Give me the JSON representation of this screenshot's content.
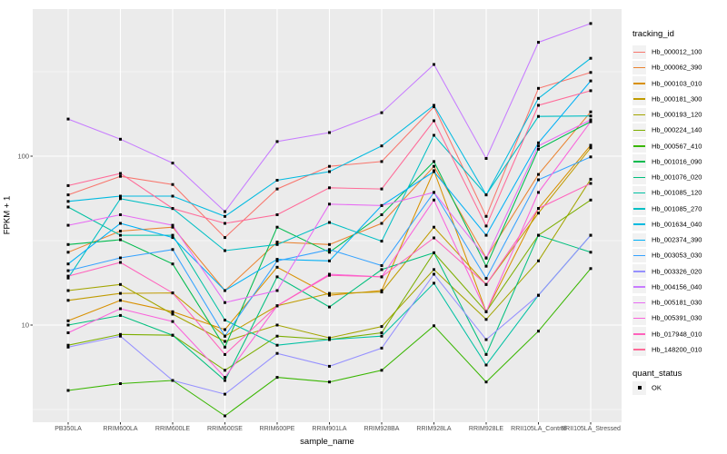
{
  "chart_data": {
    "type": "line",
    "title": "",
    "xlabel": "sample_name",
    "ylabel": "FPKM + 1",
    "y_scale": "log10",
    "ylim": [
      2.6,
      750
    ],
    "grid": true,
    "legend_position": "right",
    "y_ticks": [
      {
        "label": "100",
        "value": 100
      },
      {
        "label": "10",
        "value": 10
      }
    ],
    "y_minor_breaks": [
      316.23,
      31.62,
      3.162
    ],
    "categories": [
      "PB350LA",
      "RRIM600LA",
      "RRIM600LE",
      "RRIM600SE",
      "RRIM600PE",
      "RRIM901LA",
      "RRIM928BA",
      "RRIM928LA",
      "RRIM928LE",
      "RRII105LA_Control",
      "RRII105LA_Stressed"
    ],
    "series": [
      {
        "name": "Hb_000012_100",
        "color": "#F8766D",
        "values": [
          59,
          76,
          68,
          33,
          64,
          87,
          93,
          196,
          44,
          252,
          313
        ]
      },
      {
        "name": "Hb_000062_390",
        "color": "#EA8331",
        "values": [
          27,
          36,
          38,
          16,
          31,
          30,
          40,
          87,
          25,
          78,
          183
        ]
      },
      {
        "name": "Hb_000103_010",
        "color": "#D89000",
        "values": [
          10.6,
          14,
          12,
          9.4,
          22,
          15,
          16,
          82,
          12,
          49,
          116
        ]
      },
      {
        "name": "Hb_000181_300",
        "color": "#C09B00",
        "values": [
          14,
          15.4,
          15.5,
          8.6,
          13,
          15.4,
          15.7,
          38,
          17.4,
          46,
          112
        ]
      },
      {
        "name": "Hb_000193_120",
        "color": "#A3A500",
        "values": [
          16,
          17.4,
          11.6,
          8,
          10,
          8.4,
          9.8,
          21.3,
          10.8,
          24,
          73
        ]
      },
      {
        "name": "Hb_000224_140",
        "color": "#7CAE00",
        "values": [
          7.6,
          8.8,
          8.7,
          5.4,
          8.6,
          8.2,
          9,
          26.8,
          12,
          34,
          55
        ]
      },
      {
        "name": "Hb_000567_410",
        "color": "#39B600",
        "values": [
          4.1,
          4.5,
          4.7,
          2.9,
          4.9,
          4.6,
          5.4,
          9.9,
          4.6,
          9.2,
          21.6
        ]
      },
      {
        "name": "Hb_001016_090",
        "color": "#00BB4E",
        "values": [
          30,
          32,
          23,
          7.4,
          38,
          27,
          45,
          93,
          22.3,
          110,
          160
        ]
      },
      {
        "name": "Hb_001076_020",
        "color": "#00BF7D",
        "values": [
          10,
          11.4,
          8.7,
          4.7,
          19.3,
          12.8,
          21.3,
          26.8,
          6.7,
          34,
          27
        ]
      },
      {
        "name": "Hb_001085_120",
        "color": "#00C1A3",
        "values": [
          50,
          34,
          34,
          10.7,
          7.6,
          8.2,
          8.6,
          17.7,
          5.8,
          15,
          34
        ]
      },
      {
        "name": "Hb_001085_270",
        "color": "#00BFC4",
        "values": [
          19,
          56,
          49,
          27.6,
          30,
          40.5,
          31.4,
          133,
          59,
          172,
          173
        ]
      },
      {
        "name": "Hb_001634_040",
        "color": "#00BAE0",
        "values": [
          54,
          58,
          58,
          44,
          72,
          81,
          115,
          200,
          59,
          220,
          380
        ]
      },
      {
        "name": "Hb_002374_390",
        "color": "#00B0F6",
        "values": [
          23,
          40,
          33,
          16,
          24.5,
          24,
          51,
          81,
          34,
          120,
          279
        ]
      },
      {
        "name": "Hb_003053_030",
        "color": "#35A2FF",
        "values": [
          21,
          25,
          28,
          8.6,
          24,
          28,
          22.5,
          61,
          18.9,
          72.5,
          99
        ]
      },
      {
        "name": "Hb_003326_020",
        "color": "#9590FF",
        "values": [
          7.4,
          8.6,
          4.7,
          3.9,
          6.8,
          5.7,
          7.3,
          20,
          8.2,
          15,
          34
        ]
      },
      {
        "name": "Hb_004156_040",
        "color": "#C77CFF",
        "values": [
          166,
          126,
          91,
          47,
          122,
          138,
          181,
          349,
          97,
          472,
          610
        ]
      },
      {
        "name": "Hb_005181_030",
        "color": "#E76BF3",
        "values": [
          39,
          45,
          39,
          13.6,
          16,
          52,
          51,
          61,
          24.9,
          115,
          164
        ]
      },
      {
        "name": "Hb_005391_030",
        "color": "#FA62DB",
        "values": [
          9,
          12.5,
          10.5,
          4.9,
          13,
          20,
          19.3,
          55,
          12,
          61,
          160
        ]
      },
      {
        "name": "Hb_017948_010",
        "color": "#FF62BC",
        "values": [
          19.5,
          23.5,
          15.5,
          6.7,
          13,
          19.7,
          19.3,
          32.8,
          17.4,
          49,
          69
        ]
      },
      {
        "name": "Hb_148200_010",
        "color": "#FF6A98",
        "values": [
          67,
          79,
          49,
          40,
          45,
          65,
          64,
          162,
          38.6,
          200,
          244
        ]
      }
    ],
    "point_color": "#000000",
    "panel_background": "#EBEBEB",
    "gridline_color": "#FFFFFF"
  },
  "legend": {
    "tracking_title": "tracking_id",
    "quant_title": "quant_status",
    "quant_items": [
      {
        "label": "OK"
      }
    ]
  }
}
